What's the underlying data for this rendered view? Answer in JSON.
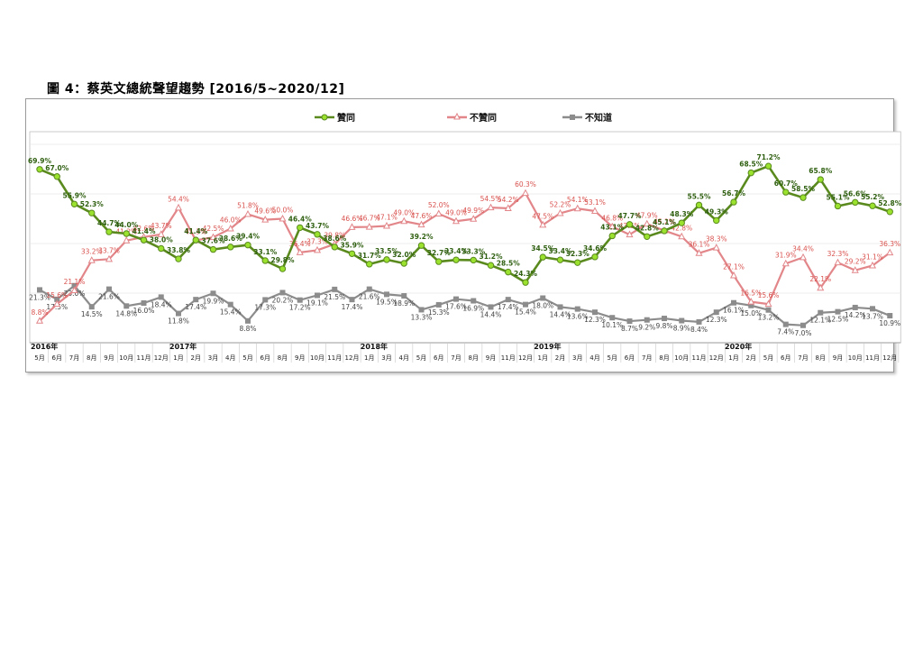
{
  "figure": {
    "title": "圖 4：蔡英文總統聲望趨勢  [2016/5~2020/12]"
  },
  "colors": {
    "approve": "#5a8a1e",
    "approve_marker": "#9be22f",
    "disapprove": "#e2868a",
    "unknown": "#8c8c8c",
    "label_approve": "#2f5f10",
    "label_disapprove": "#d9534f",
    "label_unknown": "#444444"
  },
  "chart_data": {
    "type": "line",
    "title": "",
    "xlabel": "",
    "ylabel": "",
    "ylim": [
      0,
      80
    ],
    "grid": true,
    "legend": "top-center",
    "x": [
      "5月",
      "6月",
      "7月",
      "8月",
      "9月",
      "10月",
      "11月",
      "12月",
      "1月",
      "2月",
      "3月",
      "4月",
      "5月",
      "6月",
      "8月",
      "9月",
      "10月",
      "11月",
      "12月",
      "1月",
      "3月",
      "4月",
      "5月",
      "6月",
      "7月",
      "8月",
      "9月",
      "11月",
      "12月",
      "1月",
      "2月",
      "3月",
      "4月",
      "5月",
      "6月",
      "7月",
      "8月",
      "10月",
      "11月",
      "12月",
      "1月",
      "2月",
      "5月",
      "6月",
      "7月",
      "8月",
      "9月",
      "10月",
      "11月",
      "12月"
    ],
    "x_tick_labels": [
      "5月",
      "6月",
      "7月",
      "8月",
      "9月",
      "10月",
      "11月",
      "12月",
      "1月",
      "2月",
      "3月",
      "4月",
      "5月",
      "6月",
      "8月",
      "9月",
      "10月",
      "11月",
      "12月",
      "1月",
      "3月",
      "4月",
      "5月",
      "6月",
      "7月",
      "8月",
      "9月",
      "11月",
      "12月",
      "1月",
      "2月",
      "3月",
      "4月",
      "5月",
      "6月",
      "7月",
      "8月",
      "10月",
      "11月",
      "12月",
      "1月",
      "2月",
      "5月",
      "6月",
      "7月",
      "8月",
      "9月",
      "10月",
      "11月",
      "12月"
    ],
    "year_labels": [
      {
        "text": "2016年",
        "at": 0
      },
      {
        "text": "2017年",
        "at": 8
      },
      {
        "text": "2018年",
        "at": 19
      },
      {
        "text": "2019年",
        "at": 29
      },
      {
        "text": "2020年",
        "at": 40
      }
    ],
    "series": [
      {
        "name": "贊同",
        "key": "approve",
        "values": [
          69.9,
          67.0,
          55.9,
          52.3,
          44.7,
          44.0,
          41.4,
          38.0,
          33.8,
          41.4,
          37.6,
          38.6,
          39.4,
          33.1,
          29.8,
          46.4,
          43.7,
          38.6,
          35.9,
          31.7,
          33.5,
          32.0,
          39.2,
          32.7,
          33.4,
          33.3,
          31.2,
          28.5,
          24.3,
          34.5,
          33.4,
          32.3,
          34.6,
          43.1,
          47.7,
          42.8,
          45.1,
          48.3,
          55.5,
          49.3,
          56.7,
          68.5,
          71.2,
          60.7,
          58.5,
          65.8,
          55.1,
          56.6,
          55.2,
          52.8
        ],
        "labels": [
          "69.9%",
          "67.0%",
          "55.9%",
          "52.3%",
          "44.7%",
          "44.0%",
          "41.4%",
          "38.0%",
          "33.8%",
          "41.4%",
          "37.6%",
          "38.6%",
          "39.4%",
          "33.1%",
          "29.8%",
          "46.4%",
          "43.7%",
          "38.6%",
          "35.9%",
          "31.7%",
          "33.5%",
          "32.0%",
          "39.2%",
          "32.7%",
          "33.4%",
          "33.3%",
          "31.2%",
          "28.5%",
          "24.3%",
          "34.5%",
          "33.4%",
          "32.3%",
          "34.6%",
          "43.1%",
          "47.7%",
          "42.8%",
          "45.1%",
          "48.3%",
          "55.5%",
          "49.3%",
          "56.7%",
          "68.5%",
          "71.2%",
          "60.7%",
          "58.5%",
          "65.8%",
          "55.1%",
          "56.6%",
          "55.2%",
          "52.8%"
        ]
      },
      {
        "name": "不贊同",
        "key": "disapprove",
        "values": [
          8.8,
          15.6,
          21.1,
          33.2,
          33.7,
          41.2,
          42.6,
          43.7,
          54.4,
          41.3,
          42.5,
          46.0,
          51.8,
          49.6,
          50.0,
          36.4,
          37.3,
          39.8,
          46.6,
          46.7,
          47.1,
          49.0,
          47.6,
          52.0,
          49.0,
          49.9,
          54.5,
          54.2,
          60.3,
          47.5,
          52.2,
          54.1,
          53.1,
          46.8,
          43.6,
          47.9,
          45.2,
          42.8,
          36.1,
          38.3,
          27.1,
          16.5,
          15.6,
          31.9,
          34.4,
          22.1,
          32.3,
          29.2,
          31.1,
          36.3
        ],
        "labels": [
          "8.8%",
          "15.6%",
          "21.1%",
          "33.2%",
          "33.7%",
          "41.2%",
          "42.6%",
          "43.7%",
          "54.4%",
          "41.3%",
          "42.5%",
          "46.0%",
          "51.8%",
          "49.6%",
          "50.0%",
          "36.4%",
          "37.3%",
          "39.8%",
          "46.6%",
          "46.7%",
          "47.1%",
          "49.0%",
          "47.6%",
          "52.0%",
          "49.0%",
          "49.9%",
          "54.5%",
          "54.2%",
          "60.3%",
          "47.5%",
          "52.2%",
          "54.1%",
          "53.1%",
          "46.8%",
          "43.6%",
          "47.9%",
          "45.2%",
          "42.8%",
          "36.1%",
          "38.3%",
          "27.1%",
          "16.5%",
          "15.6%",
          "31.9%",
          "34.4%",
          "22.1%",
          "32.3%",
          "29.2%",
          "31.1%",
          "36.3%"
        ]
      },
      {
        "name": "不知道",
        "key": "unknown",
        "values": [
          21.3,
          17.5,
          23.0,
          14.5,
          21.6,
          14.8,
          16.0,
          18.4,
          11.8,
          17.4,
          19.9,
          15.4,
          8.8,
          17.3,
          20.2,
          17.2,
          19.1,
          21.5,
          17.4,
          21.6,
          19.5,
          18.9,
          13.3,
          15.3,
          17.6,
          16.9,
          14.4,
          17.4,
          15.4,
          18.0,
          14.4,
          13.6,
          12.3,
          10.1,
          8.7,
          9.2,
          9.8,
          8.9,
          8.4,
          12.3,
          16.1,
          15.0,
          13.2,
          7.4,
          7.0,
          12.1,
          12.5,
          14.2,
          13.7,
          10.9
        ],
        "labels": [
          "21.3%",
          "17.5%",
          "23.0%",
          "14.5%",
          "21.6%",
          "14.8%",
          "16.0%",
          "18.4%",
          "11.8%",
          "17.4%",
          "19.9%",
          "15.4%",
          "8.8%",
          "17.3%",
          "20.2%",
          "17.2%",
          "19.1%",
          "21.5%",
          "17.4%",
          "21.6%",
          "19.5%",
          "18.9%",
          "13.3%",
          "15.3%",
          "17.6%",
          "16.9%",
          "14.4%",
          "17.4%",
          "15.4%",
          "18.0%",
          "14.4%",
          "13.6%",
          "12.3%",
          "10.1%",
          "8.7%",
          "9.2%",
          "9.8%",
          "8.9%",
          "8.4%",
          "12.3%",
          "16.1%",
          "15.0%",
          "13.2%",
          "7.4%",
          "7.0%",
          "12.1%",
          "12.5%",
          "14.2%",
          "13.7%",
          "10.9%"
        ]
      }
    ]
  }
}
